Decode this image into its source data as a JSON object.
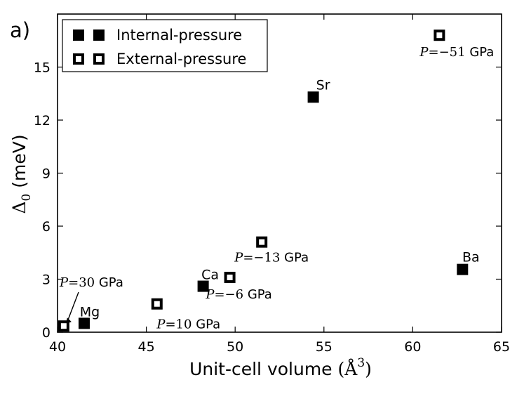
{
  "panel_label": "a)",
  "chart_data": {
    "type": "scatter",
    "xlabel": "Unit-cell volume",
    "xlabel_unit": "Å",
    "xlabel_unit_exponent": "3",
    "ylabel_symbol": "Δ",
    "ylabel_subscript": "0",
    "ylabel_unit": "(meV)",
    "xlim": [
      40,
      65
    ],
    "ylim": [
      0,
      18
    ],
    "x_ticks": [
      40,
      45,
      50,
      55,
      60,
      65
    ],
    "y_ticks": [
      0,
      3,
      6,
      9,
      12,
      15
    ],
    "grid": false,
    "legend_position": "top-left",
    "series": [
      {
        "name": "Internal-pressure",
        "marker": "filled-square",
        "points": [
          {
            "x": 41.5,
            "y": 0.5,
            "label": "Mg"
          },
          {
            "x": 48.2,
            "y": 2.6,
            "label": "Ca"
          },
          {
            "x": 54.4,
            "y": 13.3,
            "label": "Sr"
          },
          {
            "x": 62.8,
            "y": 3.55,
            "label": "Ba"
          }
        ]
      },
      {
        "name": "External-pressure",
        "marker": "open-square",
        "points": [
          {
            "x": 40.35,
            "y": 0.35,
            "label_var": "P",
            "label_eq": "=",
            "label_value": "30",
            "label_unit": "GPa"
          },
          {
            "x": 45.6,
            "y": 1.6,
            "label_var": "P",
            "label_eq": "=",
            "label_value": "10",
            "label_unit": "GPa"
          },
          {
            "x": 49.7,
            "y": 3.1,
            "label_var": "P",
            "label_eq": "=",
            "label_value": "−6",
            "label_unit": "GPa"
          },
          {
            "x": 51.5,
            "y": 5.1,
            "label_var": "P",
            "label_eq": "=",
            "label_value": "−13",
            "label_unit": "GPa"
          },
          {
            "x": 61.5,
            "y": 16.8,
            "label_var": "P",
            "label_eq": "=",
            "label_value": "−51",
            "label_unit": "GPa"
          }
        ]
      }
    ]
  }
}
